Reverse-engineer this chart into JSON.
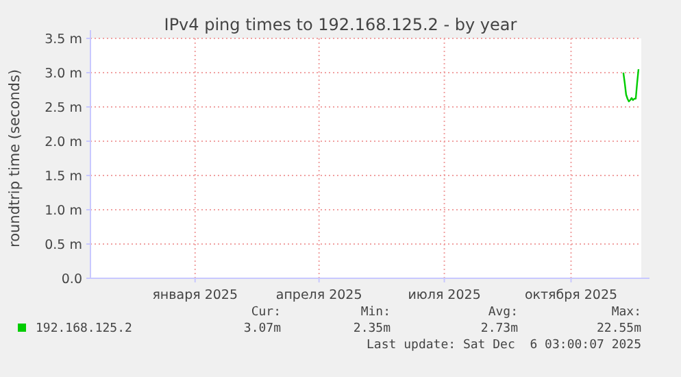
{
  "chart_data": {
    "type": "line",
    "title": "IPv4 ping times to 192.168.125.2 - by year",
    "ylabel": "roundtrip time (seconds)",
    "xlim": [
      "2024-11-01",
      "2025-12-06"
    ],
    "xticks": [
      {
        "value": "2025-01-16",
        "label": "января 2025"
      },
      {
        "value": "2025-04-16",
        "label": "апреля 2025"
      },
      {
        "value": "2025-07-16",
        "label": "июля 2025"
      },
      {
        "value": "2025-10-16",
        "label": "октября 2025"
      }
    ],
    "ylim": [
      0,
      3.5
    ],
    "yticks": [
      {
        "value": 0,
        "label": "0.0"
      },
      {
        "value": 0.5,
        "label": "0.5 m"
      },
      {
        "value": 1,
        "label": "1.0 m"
      },
      {
        "value": 1.5,
        "label": "1.5 m"
      },
      {
        "value": 2,
        "label": "2.0 m"
      },
      {
        "value": 2.5,
        "label": "2.5 m"
      },
      {
        "value": 3,
        "label": "3.0 m"
      },
      {
        "value": 3.5,
        "label": "3.5 m"
      }
    ],
    "grid": true,
    "legend": "bottom left",
    "series": [
      {
        "name": "192.168.125.2",
        "color": "#00cc00",
        "x": [
          "2025-11-23",
          "2025-11-24",
          "2025-11-25",
          "2025-11-26",
          "2025-11-27",
          "2025-11-28",
          "2025-11-29",
          "2025-11-30",
          "2025-12-01",
          "2025-12-02",
          "2025-12-03",
          "2025-12-04"
        ],
        "values": [
          3.0,
          2.85,
          2.68,
          2.62,
          2.58,
          2.6,
          2.63,
          2.6,
          2.62,
          2.62,
          2.85,
          3.05
        ]
      }
    ],
    "annotations": [
      "Cur:",
      "3.07m",
      "Min:",
      "2.35m",
      "Avg:",
      "2.73m",
      "Max:",
      "22.55m",
      "Last update: Sat Dec  6 03:00:07 2025"
    ]
  }
}
